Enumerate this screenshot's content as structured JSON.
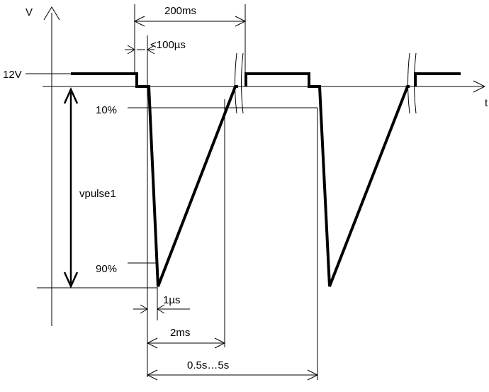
{
  "diagram": {
    "axis_labels": {
      "y": "V",
      "x": "t"
    },
    "level_label": "12V",
    "percent_labels": {
      "p10": "10%",
      "p90": "90%"
    },
    "amplitude_label": "vpulse1",
    "timing_labels": {
      "pulse_period": "200ms",
      "rise_step": "<100µs",
      "fall_time": "1µs",
      "decay_time": "2ms",
      "repetition": "0.5s…5s"
    }
  }
}
